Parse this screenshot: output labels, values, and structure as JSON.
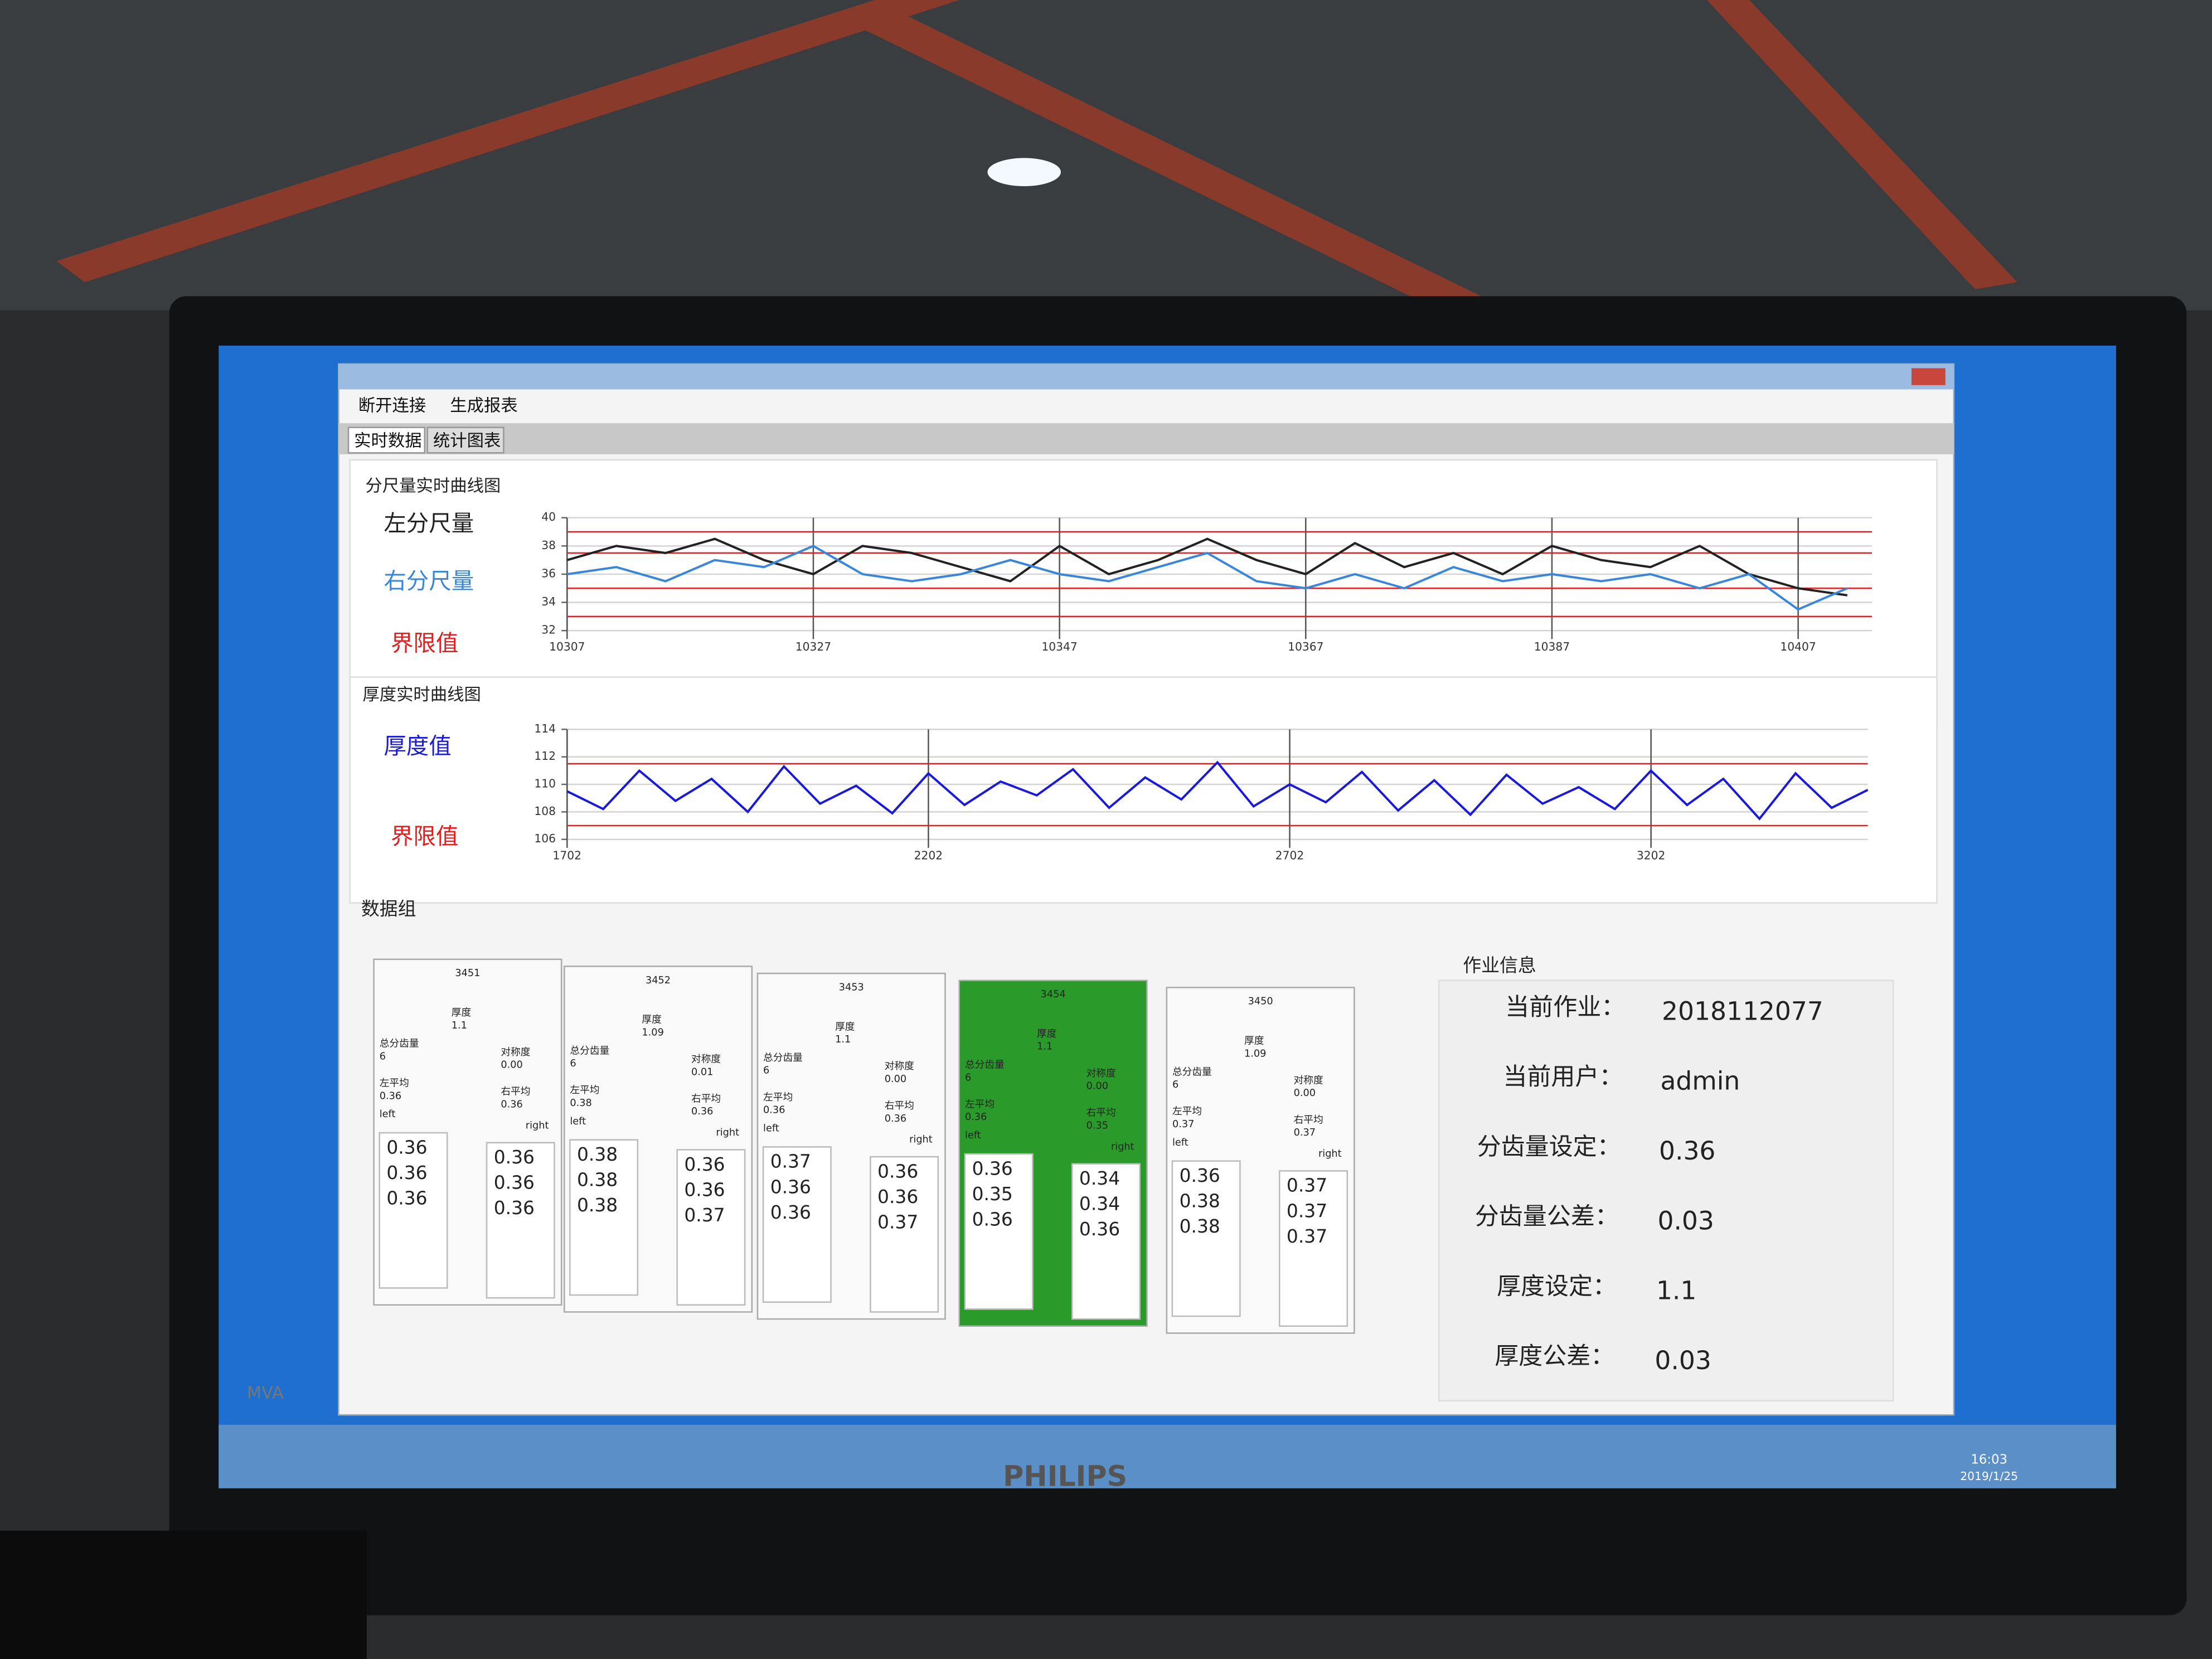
{
  "window": {
    "menu": [
      "断开连接",
      "生成报表"
    ],
    "tabs": [
      "实时数据",
      "统计图表"
    ]
  },
  "chart1": {
    "type": "line",
    "title": "分尺量实时曲线图",
    "x": [
      10307,
      10311,
      10315,
      10319,
      10323,
      10327,
      10331,
      10335,
      10339,
      10343,
      10347,
      10351,
      10355,
      10359,
      10363,
      10367,
      10371,
      10375,
      10379,
      10383,
      10387,
      10391,
      10395,
      10399,
      10403,
      10407,
      10411
    ],
    "series": [
      {
        "name": "左分尺量",
        "color": "#222222",
        "values": [
          37,
          38,
          37.5,
          38.5,
          37,
          36,
          38,
          37.5,
          36.5,
          35.5,
          38,
          36,
          37,
          38.5,
          37,
          36,
          38.2,
          36.5,
          37.5,
          36,
          38,
          37,
          36.5,
          38,
          36,
          35,
          34.5
        ]
      },
      {
        "name": "右分尺量",
        "color": "#3a86d8",
        "values": [
          36,
          36.5,
          35.5,
          37,
          36.5,
          38,
          36,
          35.5,
          36,
          37,
          36,
          35.5,
          36.5,
          37.5,
          35.5,
          35,
          36,
          35,
          36.5,
          35.5,
          36,
          35.5,
          36,
          35,
          36,
          33.5,
          35
        ]
      }
    ],
    "limit_name": "界限值",
    "limit_color": "#e02020",
    "limits": [
      33,
      35,
      37.5,
      39
    ],
    "xlim": [
      10307,
      10413
    ],
    "xticks": [
      10307,
      10327,
      10347,
      10367,
      10387,
      10407
    ],
    "ylim": [
      32,
      40
    ],
    "yticks": [
      32,
      34,
      36,
      38,
      40
    ],
    "grid": true
  },
  "chart2": {
    "type": "line",
    "title": "厚度实时曲线图",
    "x": [
      1702,
      1752,
      1802,
      1852,
      1902,
      1952,
      2002,
      2052,
      2102,
      2152,
      2202,
      2252,
      2302,
      2352,
      2402,
      2452,
      2502,
      2552,
      2602,
      2652,
      2702,
      2752,
      2802,
      2852,
      2902,
      2952,
      3002,
      3052,
      3102,
      3152,
      3202,
      3252,
      3302,
      3352,
      3402,
      3452,
      3502
    ],
    "series": [
      {
        "name": "厚度值",
        "color": "#1a1ad8",
        "values": [
          109.5,
          108.2,
          111,
          108.8,
          110.4,
          108,
          111.3,
          108.6,
          109.9,
          107.9,
          110.8,
          108.5,
          110.2,
          109.2,
          111.1,
          108.3,
          110.5,
          108.9,
          111.6,
          108.4,
          110,
          108.7,
          110.9,
          108.1,
          110.3,
          107.8,
          110.7,
          108.6,
          109.8,
          108.2,
          111,
          108.5,
          110.4,
          107.5,
          110.8,
          108.3,
          109.6
        ]
      }
    ],
    "limit_name": "界限值",
    "limit_color": "#e02020",
    "limits": [
      107,
      111.5
    ],
    "xlim": [
      1702,
      3502
    ],
    "xticks": [
      1702,
      2202,
      2702,
      3202
    ],
    "ylim": [
      106,
      114
    ],
    "yticks": [
      106,
      108,
      110,
      112,
      114
    ],
    "grid": true
  },
  "groups": {
    "title": "数据组",
    "labels": {
      "thickness": "厚度",
      "teeth": "总分齿量",
      "symmetry": "对称度",
      "left_avg": "左平均",
      "right_avg": "右平均",
      "left": "left",
      "right": "right"
    },
    "highlight_color": "#2a9a2a",
    "cards": [
      {
        "id": "3451",
        "thickness": "1.1",
        "teeth": "6",
        "symmetry": "0.00",
        "left_avg": "0.36",
        "right_avg": "0.36",
        "left": [
          "0.36",
          "0.36",
          "0.36"
        ],
        "right": [
          "0.36",
          "0.36",
          "0.36"
        ],
        "highlighted": false
      },
      {
        "id": "3452",
        "thickness": "1.09",
        "teeth": "6",
        "symmetry": "0.01",
        "left_avg": "0.38",
        "right_avg": "0.36",
        "left": [
          "0.38",
          "0.38",
          "0.38"
        ],
        "right": [
          "0.36",
          "0.36",
          "0.37"
        ],
        "highlighted": false
      },
      {
        "id": "3453",
        "thickness": "1.1",
        "teeth": "6",
        "symmetry": "0.00",
        "left_avg": "0.36",
        "right_avg": "0.36",
        "left": [
          "0.37",
          "0.36",
          "0.36"
        ],
        "right": [
          "0.36",
          "0.36",
          "0.37"
        ],
        "highlighted": false
      },
      {
        "id": "3454",
        "thickness": "1.1",
        "teeth": "6",
        "symmetry": "0.00",
        "left_avg": "0.36",
        "right_avg": "0.35",
        "left": [
          "0.36",
          "0.35",
          "0.36"
        ],
        "right": [
          "0.34",
          "0.34",
          "0.36"
        ],
        "highlighted": true
      },
      {
        "id": "3450",
        "thickness": "1.09",
        "teeth": "6",
        "symmetry": "0.00",
        "left_avg": "0.37",
        "right_avg": "0.37",
        "left": [
          "0.36",
          "0.38",
          "0.38"
        ],
        "right": [
          "0.37",
          "0.37",
          "0.37"
        ],
        "highlighted": false
      }
    ]
  },
  "job": {
    "title": "作业信息",
    "rows": [
      {
        "label": "当前作业：",
        "value": "2018112077"
      },
      {
        "label": "当前用户：",
        "value": "admin"
      },
      {
        "label": "分齿量设定：",
        "value": "0.36"
      },
      {
        "label": "分齿量公差：",
        "value": "0.03"
      },
      {
        "label": "厚度设定：",
        "value": "1.1"
      },
      {
        "label": "厚度公差：",
        "value": "0.03"
      }
    ]
  },
  "taskbar": {
    "time": "16:03",
    "date": "2019/1/25"
  },
  "monitor": {
    "brand": "PHILIPS",
    "badge": "MVA"
  }
}
